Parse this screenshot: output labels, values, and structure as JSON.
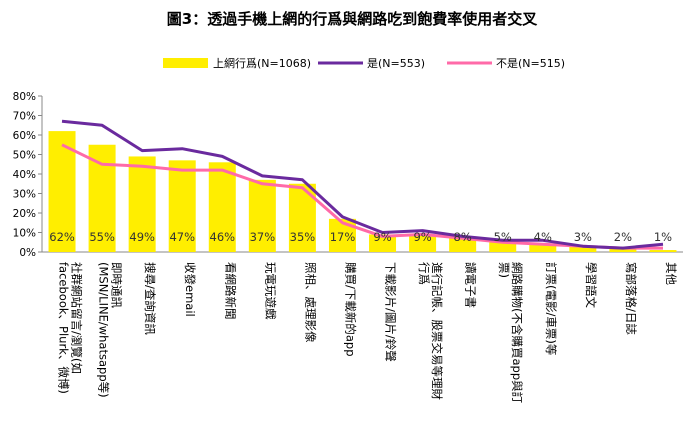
{
  "chart_data": {
    "type": "bar",
    "title": "圖3：透過手機上網的行爲與網路吃到飽費率使用者交叉",
    "xlabel": "",
    "ylabel": "",
    "ylim": [
      0,
      80
    ],
    "yticks": [
      "0%",
      "10%",
      "20%",
      "30%",
      "40%",
      "50%",
      "60%",
      "70%",
      "80%"
    ],
    "grid": false,
    "legend_position": "top",
    "categories": [
      "社群網站留言/瀏覽(如facebook、Plurk、微博)",
      "即時通訊(MSN/LINE/whatsapp等)",
      "搜尋/查詢資訊",
      "收發email",
      "看網路新聞",
      "玩電玩遊戲",
      "照相、處理影像",
      "購買/下載新的app",
      "下載影片/圖片/鈴聲",
      "進行記帳、股票交易等理財行爲",
      "讀電子書",
      "網路購物(不含購買app與訂票)",
      "訂票(電影/車票)等",
      "學習語文",
      "寫部落格/日誌",
      "其他"
    ],
    "category_lines": [
      [
        "社群網站留言/瀏覽(如",
        "facebook、Plurk、微博)"
      ],
      [
        "即時通訊",
        "(MSN/LINE/whatsapp等)"
      ],
      [
        "搜尋/查詢資訊"
      ],
      [
        "收發email"
      ],
      [
        "看網路新聞"
      ],
      [
        "玩電玩遊戲"
      ],
      [
        "照相、處理影像"
      ],
      [
        "購買/下載新的app"
      ],
      [
        "下載影片/圖片/鈴聲"
      ],
      [
        "進行記帳、股票交易等理財",
        "行爲"
      ],
      [
        "讀電子書"
      ],
      [
        "網路購物(不含購買app與訂",
        "票)"
      ],
      [
        "訂票(電影/車票)等"
      ],
      [
        "學習語文"
      ],
      [
        "寫部落格/日誌"
      ],
      [
        "其他"
      ]
    ],
    "series": [
      {
        "name": "上網行爲(N=1068)",
        "type": "bar",
        "color": "#ffee00",
        "values": [
          62,
          55,
          49,
          47,
          46,
          37,
          35,
          17,
          9,
          9,
          8,
          5,
          4,
          3,
          2,
          1
        ],
        "labels": [
          "62%",
          "55%",
          "49%",
          "47%",
          "46%",
          "37%",
          "35%",
          "17%",
          "9%",
          "9%",
          "8%",
          "5%",
          "4%",
          "3%",
          "2%",
          "1%"
        ]
      },
      {
        "name": "是(N=553)",
        "type": "line",
        "color": "#6a2a9e",
        "values": [
          67,
          65,
          52,
          53,
          49,
          39,
          37,
          18,
          10,
          11,
          8,
          6,
          6,
          3,
          2,
          4
        ]
      },
      {
        "name": "不是(N=515)",
        "type": "line",
        "color": "#ff6aa8",
        "values": [
          55,
          45,
          44,
          42,
          42,
          35,
          33,
          15,
          8,
          9,
          7,
          5,
          4,
          3,
          2,
          2
        ]
      }
    ]
  }
}
